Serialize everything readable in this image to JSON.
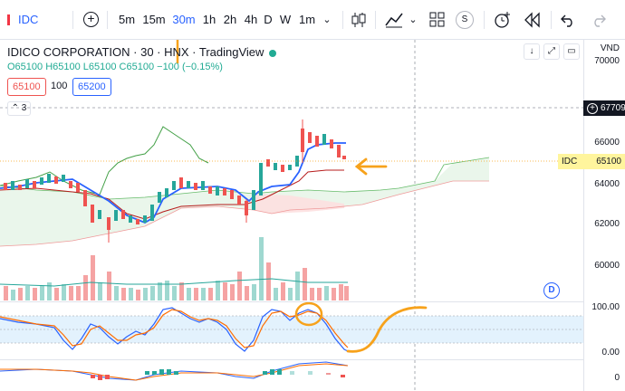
{
  "toolbar": {
    "symbol": "IDC",
    "intervals": [
      "5m",
      "15m",
      "30m",
      "1h",
      "2h",
      "4h",
      "D",
      "W",
      "1m"
    ],
    "active_interval": "30m",
    "s_badge": "S"
  },
  "legend": {
    "title": "IDICO CORPORATION · 30 · HNX · TradingView",
    "ohlc": "O65100  H65100  L65100  C65100  −100  (−0.15%)",
    "bid": "65100",
    "spread": "100",
    "ask": "65200",
    "collapse": "3",
    "d_marker": "D"
  },
  "price_scale": {
    "currency": "VND",
    "labels": [
      "70000",
      "66000",
      "64000",
      "62000",
      "60000"
    ],
    "crosshair_price": "67709",
    "last_symbol": "IDC",
    "last_price": "65100",
    "osc_labels": [
      "100.00",
      "0.00",
      "0"
    ]
  },
  "colors": {
    "up": "#26a69a",
    "down": "#ef5350",
    "accent": "#2962ff",
    "annotation": "#f7a21b",
    "last_price_bg": "#fff59d"
  },
  "icons": [
    "plus-circle-icon",
    "candles-icon",
    "indicators-icon",
    "layout-grid-icon",
    "alert-clock-icon",
    "replay-icon",
    "undo-icon",
    "redo-icon"
  ]
}
